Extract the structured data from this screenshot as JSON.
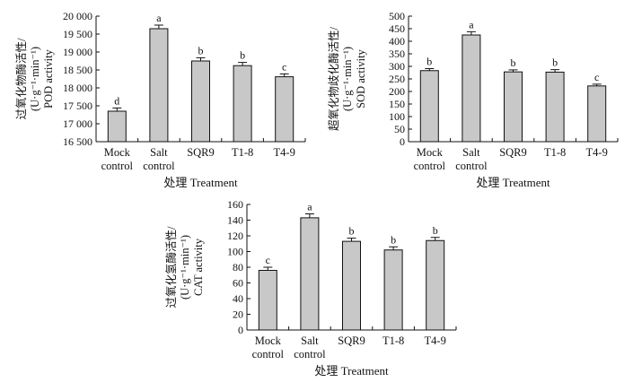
{
  "chart_data": [
    {
      "type": "bar",
      "categories": [
        "Mock\ncontrol",
        "Salt\ncontrol",
        "SQR9",
        "T1-8",
        "T4-9"
      ],
      "values": [
        17350,
        19650,
        18750,
        18620,
        18310
      ],
      "errors": [
        90,
        100,
        90,
        90,
        80
      ],
      "sig_labels": [
        "d",
        "a",
        "b",
        "b",
        "c"
      ],
      "ylim": [
        16500,
        20000
      ],
      "yticks": [
        16500,
        17000,
        17500,
        18000,
        18500,
        19000,
        19500,
        20000
      ],
      "ytick_labels": [
        "16 500",
        "17 000",
        "17 500",
        "18 000",
        "18 500",
        "19 000",
        "19 500",
        "20 000"
      ],
      "ylabel_lines": [
        "过氧化物酶活性/",
        "(U·g⁻¹·min⁻¹)",
        "POD activity"
      ],
      "xlabel": "处理 Treatment",
      "bar_color": "#c8c8c8"
    },
    {
      "type": "bar",
      "categories": [
        "Mock\ncontrol",
        "Salt\ncontrol",
        "SQR9",
        "T1-8",
        "T4-9"
      ],
      "values": [
        283,
        425,
        278,
        277,
        222
      ],
      "errors": [
        8,
        13,
        8,
        10,
        7
      ],
      "sig_labels": [
        "b",
        "a",
        "b",
        "b",
        "c"
      ],
      "ylim": [
        0,
        500
      ],
      "yticks": [
        0,
        50,
        100,
        150,
        200,
        250,
        300,
        350,
        400,
        450,
        500
      ],
      "ytick_labels": [
        "0",
        "50",
        "100",
        "150",
        "200",
        "250",
        "300",
        "350",
        "400",
        "450",
        "500"
      ],
      "ylabel_lines": [
        "超氧化物歧化酶活性/",
        "(U·g⁻¹·min⁻¹)",
        "SOD activity"
      ],
      "xlabel": "处理 Treatment",
      "bar_color": "#c8c8c8"
    },
    {
      "type": "bar",
      "categories": [
        "Mock\ncontrol",
        "Salt\ncontrol",
        "SQR9",
        "T1-8",
        "T4-9"
      ],
      "values": [
        76,
        143,
        113,
        102,
        114
      ],
      "errors": [
        4,
        5,
        4,
        4,
        4
      ],
      "sig_labels": [
        "c",
        "a",
        "b",
        "b",
        "b"
      ],
      "ylim": [
        0,
        160
      ],
      "yticks": [
        0,
        20,
        40,
        60,
        80,
        100,
        120,
        140,
        160
      ],
      "ytick_labels": [
        "0",
        "20",
        "40",
        "60",
        "80",
        "100",
        "120",
        "140",
        "160"
      ],
      "ylabel_lines": [
        "过氧化氢酶活性/",
        "(U·g⁻¹·min⁻¹)",
        "CAT activity"
      ],
      "xlabel": "处理 Treatment",
      "bar_color": "#c8c8c8"
    }
  ]
}
